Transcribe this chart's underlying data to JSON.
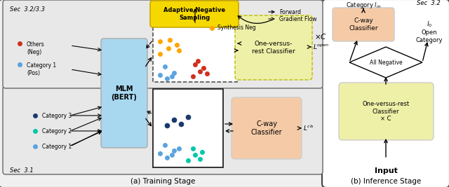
{
  "fig_width": 6.4,
  "fig_height": 2.67,
  "dpi": 100,
  "bg_color": "#ffffff",
  "colors": {
    "blue": "#5BA3E0",
    "teal": "#00C8A8",
    "dark_blue": "#1A3A6B",
    "orange_dot": "#FFA500",
    "red_dot": "#D03020",
    "mlm_bg": "#A8D8F0",
    "cway_bg": "#F5CBA7",
    "ovr_bg": "#EEF0A8",
    "ans_bg": "#F5D800",
    "outer_a_bg": "#F0F0F0",
    "inner_bg": "#E8E8E8"
  },
  "title_a": "(a) Training Stage",
  "title_b": "(b) Inference Stage",
  "sec31_label": "Sec  3.1",
  "sec323_label": "Sec  3.2/3.3",
  "sec32_label": "Sec  3.2",
  "gradient_flow_label": "-- Gradient Flow",
  "forward_label": "→ Forward",
  "synthesis_neg_label": "Synthesis Neg",
  "ans_label": "Adaptive Negative\nSampling",
  "mlm_label": "MLM\n(BERT)",
  "cway_label": "C-way\nClassifier",
  "ovr_label": "One-versus-\nrest Classifier",
  "input_label": "Input",
  "ovr_inf_label": "One-versus-rest\nClassifier\n× C",
  "all_neg_label": "All Negative",
  "cway_inf_label": "C-way\nClassifier",
  "open_cat_label": "Open\nCategory",
  "cat_lm_label": "Category  $l_m$"
}
